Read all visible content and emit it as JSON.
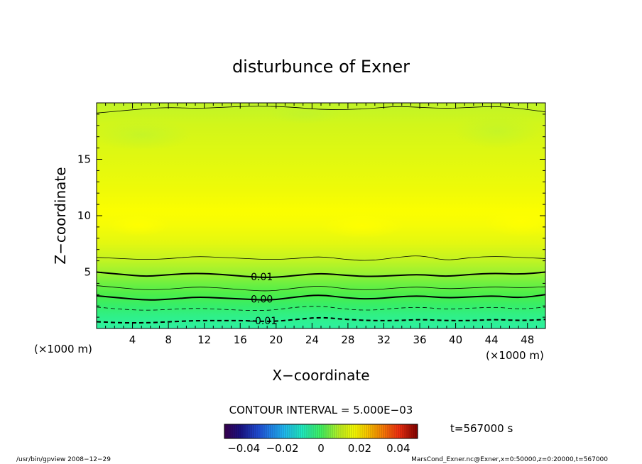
{
  "chart_data": {
    "type": "heatmap",
    "title": "disturbunce of Exner",
    "xlabel": "X−coordinate",
    "ylabel": "Z−coordinate",
    "x_unit": "(×1000 m)",
    "z_unit": "(×1000 m)",
    "xlim": [
      0,
      50
    ],
    "ylim": [
      0,
      20
    ],
    "x_ticks": [
      4,
      8,
      12,
      16,
      20,
      24,
      28,
      32,
      36,
      40,
      44,
      48
    ],
    "y_ticks": [
      5,
      10,
      15
    ],
    "contour_interval_label": "CONTOUR INTERVAL = 5.000E−03",
    "time_label": "t=567000 s",
    "colorbar": {
      "range": [
        -0.05,
        0.05
      ],
      "ticks": [
        "−0.04",
        "−0.02",
        "0",
        "0.02",
        "0.04"
      ]
    },
    "contours": [
      {
        "level": 0.0175,
        "style": "thin",
        "label": "",
        "z": [
          19.1,
          19.3,
          19.5,
          19.6,
          19.5,
          19.6,
          19.7,
          19.7,
          19.6,
          19.4,
          19.4,
          19.5,
          19.7,
          19.6,
          19.5,
          19.6,
          19.7,
          19.5,
          19.2
        ]
      },
      {
        "level": 0.015,
        "style": "thin",
        "label": "",
        "z": [
          6.3,
          6.2,
          6.1,
          6.2,
          6.4,
          6.3,
          6.2,
          6.1,
          6.2,
          6.4,
          6.1,
          6.0,
          6.3,
          6.5,
          6.0,
          6.3,
          6.4,
          6.3,
          6.2
        ]
      },
      {
        "level": 0.01,
        "style": "bold",
        "label": "0.01",
        "z": [
          5.0,
          4.8,
          4.6,
          4.8,
          4.9,
          4.8,
          4.6,
          4.5,
          4.7,
          4.9,
          4.7,
          4.6,
          4.7,
          4.8,
          4.6,
          4.8,
          4.9,
          4.8,
          5.0
        ]
      },
      {
        "level": 0.005,
        "style": "thin",
        "label": "",
        "z": [
          3.8,
          3.6,
          3.4,
          3.5,
          3.7,
          3.6,
          3.4,
          3.3,
          3.6,
          3.8,
          3.5,
          3.4,
          3.6,
          3.7,
          3.5,
          3.6,
          3.7,
          3.6,
          3.7
        ]
      },
      {
        "level": 0.0,
        "style": "bold",
        "label": "0.00",
        "z": [
          2.9,
          2.7,
          2.5,
          2.6,
          2.8,
          2.7,
          2.6,
          2.5,
          2.8,
          3.0,
          2.7,
          2.6,
          2.8,
          2.9,
          2.7,
          2.8,
          2.9,
          2.7,
          3.0
        ]
      },
      {
        "level": -0.005,
        "style": "dashed",
        "label": "",
        "z": [
          1.9,
          1.7,
          1.6,
          1.7,
          1.8,
          1.7,
          1.6,
          1.6,
          1.9,
          2.0,
          1.7,
          1.6,
          1.8,
          1.9,
          1.7,
          1.8,
          1.9,
          1.7,
          1.9
        ]
      },
      {
        "level": -0.01,
        "style": "dashed-bold",
        "label": "−0.01",
        "z": [
          0.6,
          0.5,
          0.5,
          0.6,
          0.7,
          0.7,
          0.7,
          0.6,
          0.8,
          1.0,
          0.8,
          0.7,
          0.7,
          0.8,
          0.7,
          0.7,
          0.8,
          0.7,
          0.8
        ]
      }
    ],
    "contour_x": [
      0,
      2.78,
      5.56,
      8.33,
      11.11,
      13.89,
      16.67,
      19.44,
      22.22,
      25,
      27.78,
      30.56,
      33.33,
      36.11,
      38.89,
      41.67,
      44.44,
      47.22,
      50
    ]
  },
  "footer": {
    "left": "/usr/bin/gpview   2008−12−29",
    "right": "MarsCond_Exner.nc@Exner,x=0:50000,z=0:20000,t=567000"
  }
}
